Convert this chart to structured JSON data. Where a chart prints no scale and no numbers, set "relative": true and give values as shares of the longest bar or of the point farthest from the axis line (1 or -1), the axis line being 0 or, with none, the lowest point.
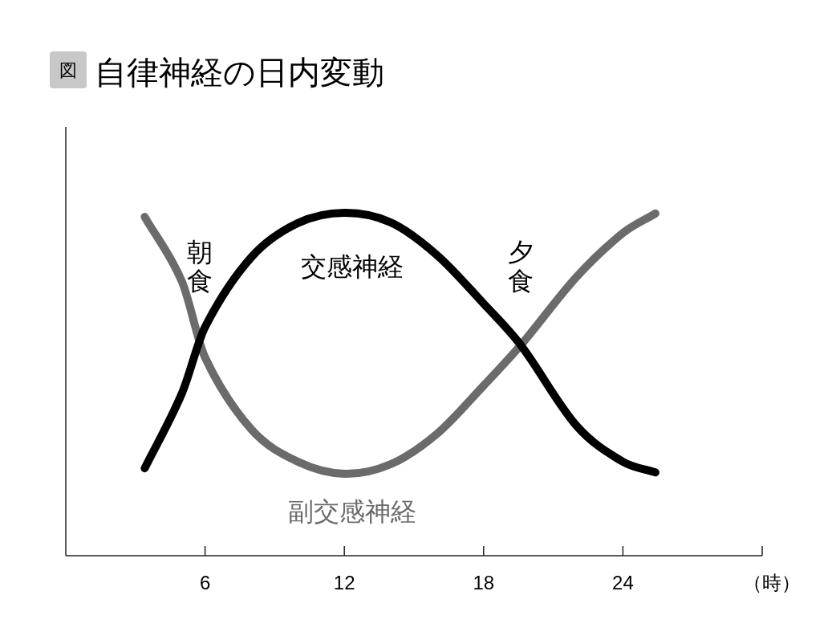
{
  "chart_data": {
    "type": "line",
    "title": "自律神経の日内変動",
    "xlabel": "（時）",
    "relative": true,
    "annotations": [
      "図",
      "朝食",
      "夕食"
    ],
    "xlim": [
      0,
      30
    ],
    "xticks": [
      6,
      12,
      18,
      24,
      {
        "value": 30,
        "label": null
      }
    ],
    "tick_labels": "x",
    "series": [
      {
        "name": "交感神経",
        "color": "#000000",
        "x": [
          3.4,
          5,
          6,
          8,
          10,
          12,
          14,
          16,
          18,
          19.6,
          22,
          24,
          25.4
        ],
        "values": [
          0.255,
          0.473,
          0.667,
          0.871,
          0.97,
          1,
          0.972,
          0.876,
          0.735,
          0.614,
          0.379,
          0.274,
          0.243
        ]
      },
      {
        "name": "副交感神経",
        "color": "#6b6b6b",
        "x": [
          3.4,
          5,
          6,
          8,
          10,
          12,
          14,
          16,
          18,
          19.6,
          22,
          24,
          25.4
        ],
        "values": [
          0.988,
          0.8,
          0.578,
          0.368,
          0.274,
          0.239,
          0.267,
          0.356,
          0.496,
          0.614,
          0.813,
          0.941,
          0.998
        ]
      }
    ]
  }
}
